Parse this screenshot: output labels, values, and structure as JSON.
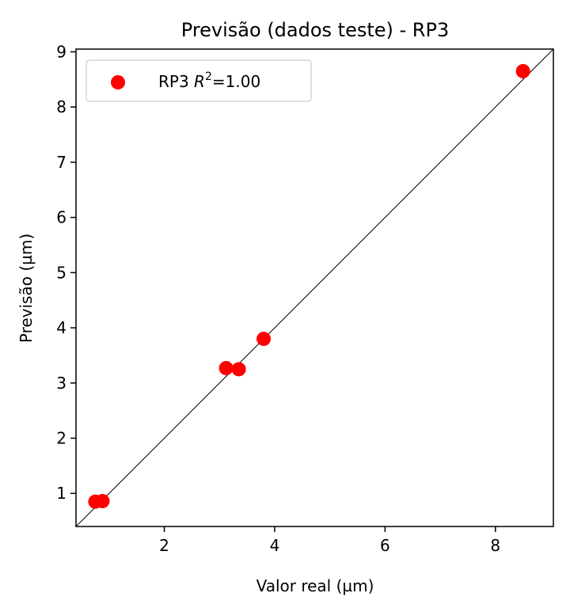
{
  "chart_data": {
    "type": "scatter",
    "title": "Previsão (dados teste) - RP3",
    "xlabel": "Valor real (µm)",
    "ylabel": "Previsão (µm)",
    "xlim": [
      0.4,
      9.05
    ],
    "ylim": [
      0.4,
      9.05
    ],
    "xticks": [
      2,
      4,
      6,
      8
    ],
    "yticks": [
      1,
      2,
      3,
      4,
      5,
      6,
      7,
      8,
      9
    ],
    "grid": false,
    "legend_position": "top-left",
    "reference_line": "y = x",
    "series": [
      {
        "name_prefix": "RP3 ",
        "name_symbol": "R",
        "name_exp": "2",
        "name_suffix": "=1.00",
        "color": "#ff0000",
        "points": [
          {
            "x": 0.75,
            "y": 0.85
          },
          {
            "x": 0.88,
            "y": 0.86
          },
          {
            "x": 3.12,
            "y": 3.27
          },
          {
            "x": 3.35,
            "y": 3.25
          },
          {
            "x": 3.8,
            "y": 3.8
          },
          {
            "x": 8.5,
            "y": 8.65
          }
        ]
      }
    ]
  }
}
